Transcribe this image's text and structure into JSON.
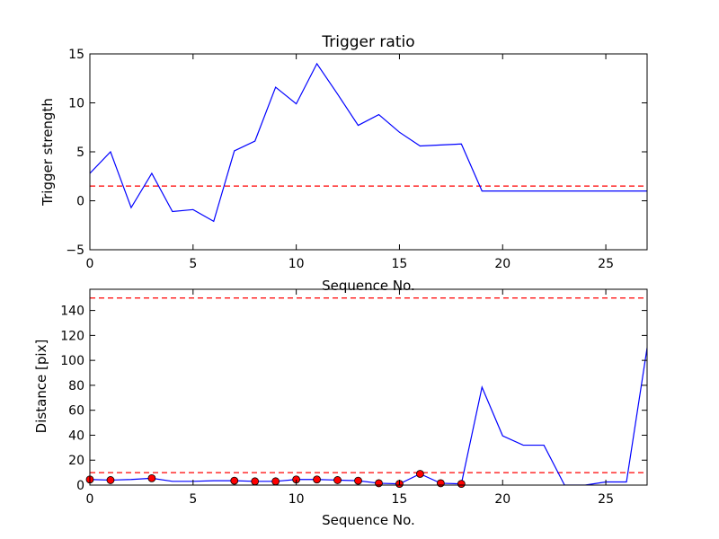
{
  "colors": {
    "line": "#0000ff",
    "threshold": "#ff0000",
    "marker": "#ff0000"
  },
  "chart_data": [
    {
      "type": "line",
      "title": "Trigger ratio",
      "xlabel": "Sequence No.",
      "ylabel": "Trigger strength",
      "xlim": [
        0,
        27
      ],
      "ylim": [
        -5,
        15
      ],
      "xticks": [
        0,
        5,
        10,
        15,
        20,
        25
      ],
      "yticks": [
        -5,
        0,
        5,
        10,
        15
      ],
      "grid": false,
      "x": [
        0,
        1,
        2,
        3,
        4,
        5,
        6,
        7,
        8,
        9,
        10,
        11,
        12,
        13,
        14,
        15,
        16,
        17,
        18,
        19,
        20,
        21,
        22,
        23,
        24,
        25,
        26,
        27
      ],
      "series": [
        {
          "values": [
            2.8,
            5.0,
            -0.7,
            2.8,
            -1.1,
            -0.9,
            -2.1,
            5.1,
            6.1,
            11.6,
            9.9,
            14.0,
            10.9,
            7.7,
            8.8,
            7.0,
            5.6,
            5.7,
            5.8,
            1.0,
            1.0,
            1.0,
            1.0,
            1.0,
            1.0,
            1.0,
            1.0,
            1.0
          ]
        }
      ],
      "thresholds": [
        1.5
      ],
      "markers": []
    },
    {
      "type": "line",
      "title": "",
      "xlabel": "Sequence No.",
      "ylabel": "Distance [pix]",
      "xlim": [
        0,
        27
      ],
      "ylim": [
        0,
        157
      ],
      "xticks": [
        0,
        5,
        10,
        15,
        20,
        25
      ],
      "yticks": [
        0,
        20,
        40,
        60,
        80,
        100,
        120,
        140
      ],
      "grid": false,
      "x": [
        0,
        1,
        2,
        3,
        4,
        5,
        6,
        7,
        8,
        9,
        10,
        11,
        12,
        13,
        14,
        15,
        16,
        17,
        18,
        19,
        20,
        21,
        22,
        23,
        24,
        25,
        26,
        27
      ],
      "series": [
        {
          "values": [
            4.5,
            4.0,
            4.5,
            5.5,
            3.0,
            3.0,
            3.5,
            3.5,
            3.0,
            3.0,
            4.5,
            4.5,
            4.0,
            3.5,
            1.5,
            1.0,
            9.0,
            1.5,
            1.0,
            78.5,
            39.5,
            32.0,
            32.0,
            0.0,
            0.0,
            2.5,
            2.5,
            110.0
          ]
        }
      ],
      "thresholds": [
        10,
        150
      ],
      "markers": [
        {
          "x": 0,
          "y": 4.5
        },
        {
          "x": 1,
          "y": 4.0
        },
        {
          "x": 3,
          "y": 5.5
        },
        {
          "x": 7,
          "y": 3.5
        },
        {
          "x": 8,
          "y": 3.0
        },
        {
          "x": 9,
          "y": 3.0
        },
        {
          "x": 10,
          "y": 4.5
        },
        {
          "x": 11,
          "y": 4.5
        },
        {
          "x": 12,
          "y": 4.0
        },
        {
          "x": 13,
          "y": 3.5
        },
        {
          "x": 14,
          "y": 1.5
        },
        {
          "x": 15,
          "y": 1.0
        },
        {
          "x": 16,
          "y": 9.0
        },
        {
          "x": 17,
          "y": 1.5
        },
        {
          "x": 18,
          "y": 1.0
        }
      ]
    }
  ]
}
